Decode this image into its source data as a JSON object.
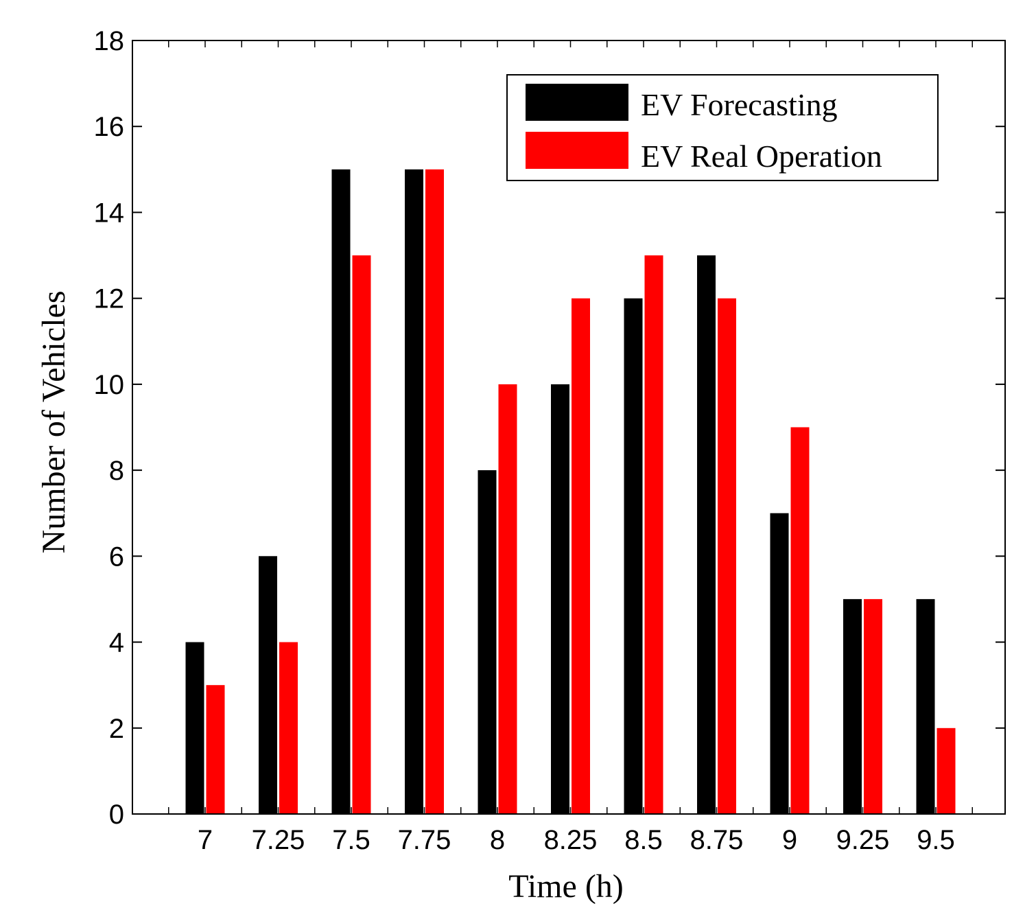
{
  "chart_data": {
    "type": "bar",
    "title": "",
    "xlabel": "Time (h)",
    "ylabel": "Number of Vehicles",
    "categories": [
      "7",
      "7.25",
      "7.5",
      "7.75",
      "8",
      "8.25",
      "8.5",
      "8.75",
      "9",
      "9.25",
      "9.5"
    ],
    "series": [
      {
        "name": "EV Forecasting",
        "color": "#000000",
        "values": [
          4,
          6,
          15,
          15,
          8,
          10,
          12,
          13,
          7,
          5,
          5
        ]
      },
      {
        "name": "EV Real Operation",
        "color": "#ff0000",
        "values": [
          3,
          4,
          13,
          15,
          10,
          12,
          13,
          12,
          9,
          5,
          2
        ]
      }
    ],
    "ylim": [
      0,
      18
    ],
    "yticks": [
      "0",
      "2",
      "4",
      "6",
      "8",
      "10",
      "12",
      "14",
      "16",
      "18"
    ],
    "grid": false,
    "legend_position": "top-right"
  }
}
